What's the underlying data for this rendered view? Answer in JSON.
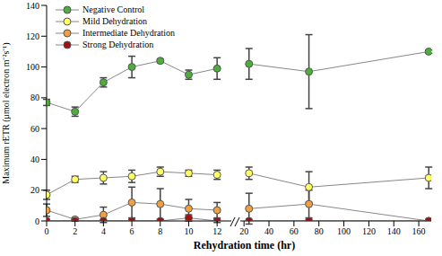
{
  "chart_data": [
    {
      "type": "line",
      "xlabel": "Rehydration time (hr)",
      "ylabel": "Maximum rETR (μmol electron m⁻²s⁻¹)",
      "legend": "upper left",
      "x": [
        0,
        2,
        4,
        6,
        8,
        10,
        12
      ],
      "xlim": [
        0,
        13
      ],
      "xticks": [
        0,
        2,
        4,
        6,
        8,
        10,
        12
      ],
      "ylim": [
        0,
        140
      ],
      "yticks": [
        0,
        20,
        40,
        60,
        80,
        100,
        120,
        140
      ],
      "series": [
        {
          "name": "Negative Control",
          "color": "#4caf3a",
          "marker": "circle",
          "values": [
            77,
            71,
            90,
            100,
            104,
            95,
            99
          ],
          "errors": [
            2,
            3,
            3,
            7,
            1,
            3,
            7
          ]
        },
        {
          "name": "Mild Dehydration",
          "color": "#ffff66",
          "marker": "circle",
          "values": [
            17,
            27,
            28,
            29,
            32,
            31,
            30
          ],
          "errors": [
            3,
            2,
            4,
            4,
            3,
            2,
            3
          ]
        },
        {
          "name": "Intermediate Dehydration",
          "color": "#f0a040",
          "marker": "circle",
          "values": [
            7,
            1,
            4,
            12,
            11,
            8,
            7
          ],
          "errors": [
            4,
            1,
            5,
            10,
            10,
            6,
            5
          ]
        },
        {
          "name": "Strong Dehydration",
          "color": "#a01010",
          "marker": "circle",
          "values": [
            0,
            0,
            0,
            0,
            0,
            2,
            0
          ],
          "errors": [
            0,
            0,
            0,
            0,
            0,
            2,
            1
          ]
        }
      ]
    },
    {
      "type": "line",
      "x": [
        24,
        72,
        168
      ],
      "xlim": [
        17,
        170
      ],
      "xticks": [
        20,
        40,
        60,
        80,
        100,
        120,
        140,
        160
      ],
      "ylim": [
        0,
        140
      ],
      "yticks": [
        0,
        20,
        40,
        60,
        80,
        100,
        120,
        140
      ],
      "series": [
        {
          "name": "Negative Control",
          "color": "#4caf3a",
          "marker": "circle",
          "values": [
            102,
            97,
            110
          ],
          "errors": [
            10,
            24,
            1
          ]
        },
        {
          "name": "Mild Dehydration",
          "color": "#ffff66",
          "marker": "circle",
          "values": [
            31,
            22,
            28
          ],
          "errors": [
            4,
            10,
            7
          ]
        },
        {
          "name": "Intermediate Dehydration",
          "color": "#f0a040",
          "marker": "circle",
          "values": [
            8,
            11,
            0
          ],
          "errors": [
            10,
            9,
            0
          ]
        },
        {
          "name": "Strong Dehydration",
          "color": "#a01010",
          "marker": "circle",
          "values": [
            0,
            0,
            0
          ],
          "errors": [
            0,
            0,
            0
          ]
        }
      ]
    }
  ]
}
